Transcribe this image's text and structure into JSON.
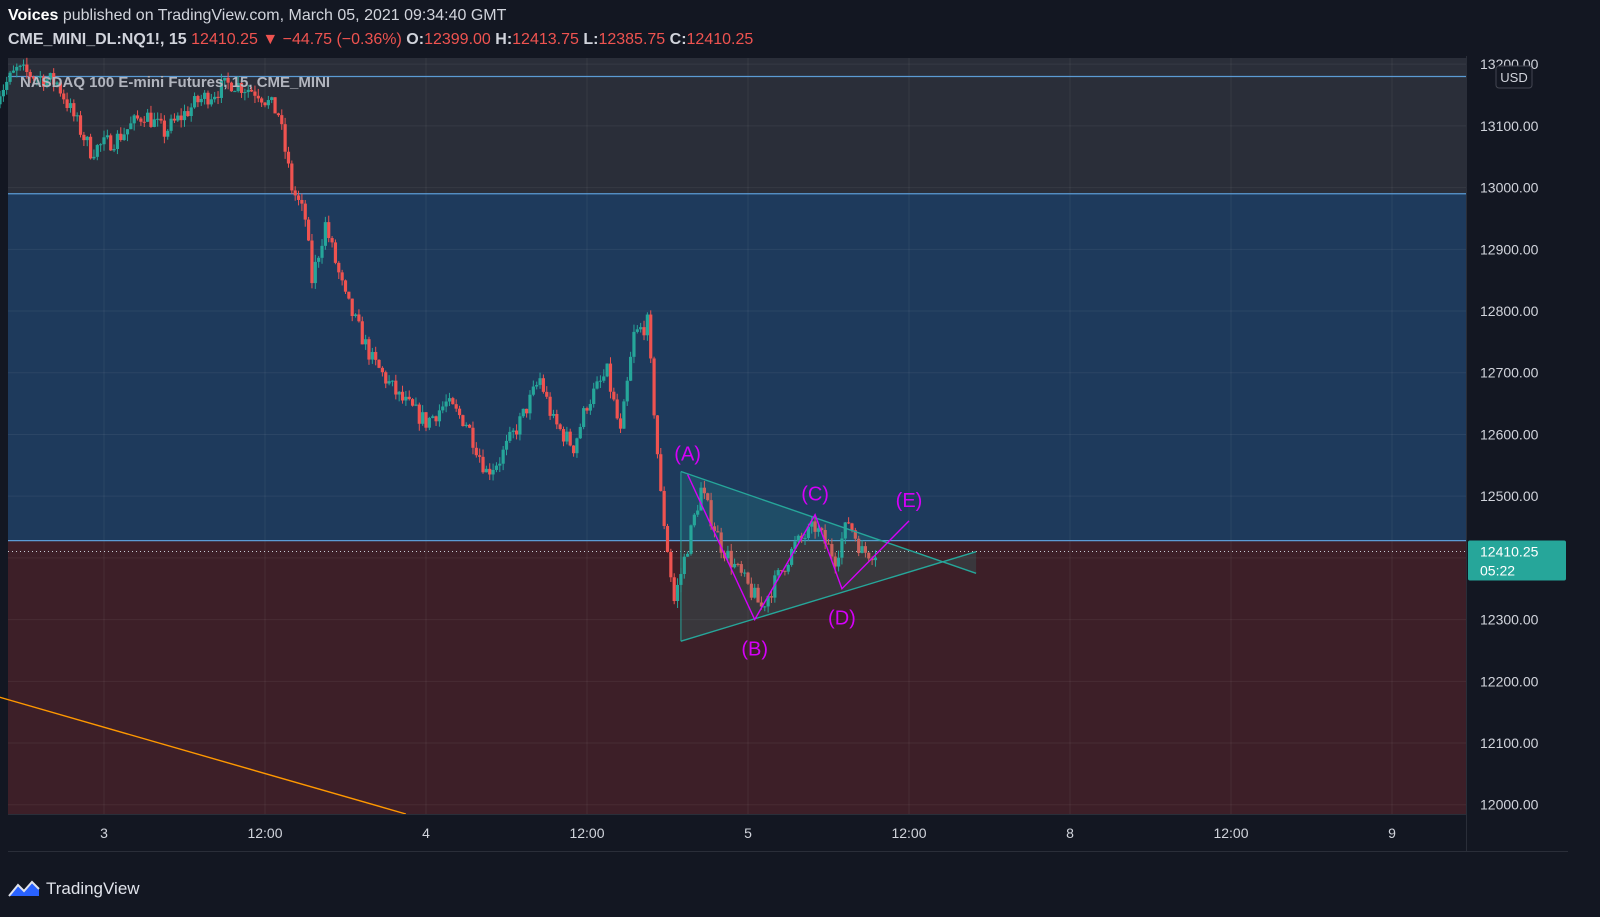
{
  "header": {
    "author": "Voices",
    "published": "published on TradingView.com, March 05, 2021 09:34:40 GMT",
    "symbol": "CME_MINI_DL:NQ1!, 15",
    "last": "12410.25",
    "change_arrow": "▼",
    "change": "−44.75 (−0.36%)",
    "o_label": "O:",
    "o_value": "12399.00",
    "h_label": "H:",
    "h_value": "12413.75",
    "l_label": "L:",
    "l_value": "12385.75",
    "c_label": "C:",
    "c_value": "12410.25"
  },
  "footer": {
    "brand": "TradingView",
    "logo_icon": "tradingview-logo-icon"
  },
  "colors": {
    "background": "#131722",
    "up": "#26a69a",
    "down": "#ef5350",
    "zone_top": "#2a2e39",
    "zone_mid": "#1e3a5c",
    "zone_low": "#3d1f28",
    "level_line": "#5b9bd5",
    "triangle": "#26a69a",
    "wave": "#d500f9",
    "trendline": "#ff9800",
    "price_tag": "#26a69a"
  },
  "chart_data": {
    "type": "candlestick",
    "title": "NASDAQ 100 E-mini Futures, 15, CME_MINI",
    "currency": "USD",
    "ylim": [
      11985,
      13210
    ],
    "y_ticks": [
      "13200.00",
      "13100.00",
      "13000.00",
      "12900.00",
      "12800.00",
      "12700.00",
      "12600.00",
      "12500.00",
      "12400.00",
      "12300.00",
      "12200.00",
      "12100.00",
      "12000.00"
    ],
    "y_tick_values": [
      13200,
      13100,
      13000,
      12900,
      12800,
      12700,
      12600,
      12500,
      12400,
      12300,
      12200,
      12100,
      12000
    ],
    "x_tick_labels": [
      "3",
      "12:00",
      "4",
      "12:00",
      "5",
      "12:00",
      "8",
      "12:00",
      "9"
    ],
    "x_tick_times": [
      "2021-03-03 00:00",
      "2021-03-03 12:00",
      "2021-03-04 00:00",
      "2021-03-04 12:00",
      "2021-03-05 00:00",
      "2021-03-05 12:00",
      "2021-03-08 00:00",
      "2021-03-08 12:00",
      "2021-03-09 00:00"
    ],
    "zones": [
      {
        "name": "upper zone",
        "from": 12990,
        "to": 13210
      },
      {
        "name": "middle zone",
        "from": 12428,
        "to": 12990
      },
      {
        "name": "lower zone",
        "from": 11985,
        "to": 12428
      }
    ],
    "horizontal_levels": [
      13180,
      12990,
      12428
    ],
    "last_price": {
      "value": 12410.25,
      "label": "12410.25",
      "countdown": "05:22"
    },
    "price_path": [
      [
        "2021-03-02 16:00",
        13150
      ],
      [
        "2021-03-02 17:30",
        13190
      ],
      [
        "2021-03-02 20:30",
        13170
      ],
      [
        "2021-03-02 23:00",
        13060
      ],
      [
        "2021-03-03 01:00",
        13080
      ],
      [
        "2021-03-03 03:00",
        13120
      ],
      [
        "2021-03-03 04:30",
        13090
      ],
      [
        "2021-03-03 07:00",
        13140
      ],
      [
        "2021-03-03 09:30",
        13170
      ],
      [
        "2021-03-03 11:30",
        13155
      ],
      [
        "2021-03-03 13:00",
        13120
      ],
      [
        "2021-03-03 14:00",
        13000
      ],
      [
        "2021-03-03 15:00",
        12950
      ],
      [
        "2021-03-03 15:30",
        12850
      ],
      [
        "2021-03-03 16:30",
        12940
      ],
      [
        "2021-03-03 18:00",
        12820
      ],
      [
        "2021-03-03 20:00",
        12720
      ],
      [
        "2021-03-03 22:00",
        12660
      ],
      [
        "2021-03-04 00:00",
        12620
      ],
      [
        "2021-03-04 01:30",
        12650
      ],
      [
        "2021-03-04 03:00",
        12620
      ],
      [
        "2021-03-04 04:30",
        12540
      ],
      [
        "2021-03-04 05:30",
        12560
      ],
      [
        "2021-03-04 07:00",
        12620
      ],
      [
        "2021-03-04 08:30",
        12690
      ],
      [
        "2021-03-04 09:30",
        12620
      ],
      [
        "2021-03-04 11:00",
        12580
      ],
      [
        "2021-03-04 12:00",
        12650
      ],
      [
        "2021-03-04 13:30",
        12700
      ],
      [
        "2021-03-04 14:30",
        12600
      ],
      [
        "2021-03-04 15:30",
        12760
      ],
      [
        "2021-03-04 16:30",
        12780
      ],
      [
        "2021-03-04 17:30",
        12500
      ],
      [
        "2021-03-04 18:30",
        12330
      ],
      [
        "2021-03-04 20:30",
        12510
      ],
      [
        "2021-03-04 22:00",
        12420
      ],
      [
        "2021-03-05 01:00",
        12320
      ],
      [
        "2021-03-05 03:30",
        12420
      ],
      [
        "2021-03-05 05:00",
        12450
      ],
      [
        "2021-03-05 06:30",
        12400
      ],
      [
        "2021-03-05 07:30",
        12460
      ],
      [
        "2021-03-05 08:30",
        12410
      ],
      [
        "2021-03-05 09:30",
        12410
      ]
    ],
    "pattern": {
      "type": "contracting triangle",
      "upper_line": [
        [
          "2021-03-04 19:00",
          12540
        ],
        [
          "2021-03-05 17:00",
          12375
        ]
      ],
      "lower_line": [
        [
          "2021-03-04 19:00",
          12265
        ],
        [
          "2021-03-05 17:00",
          12410
        ]
      ],
      "waves": [
        {
          "label": "(A)",
          "time": "2021-03-04 19:30",
          "price": 12535
        },
        {
          "label": "(B)",
          "time": "2021-03-05 00:30",
          "price": 12300
        },
        {
          "label": "(C)",
          "time": "2021-03-05 05:00",
          "price": 12470
        },
        {
          "label": "(D)",
          "time": "2021-03-05 07:00",
          "price": 12350
        },
        {
          "label": "(E)",
          "time": "2021-03-05 12:00",
          "price": 12460
        }
      ]
    },
    "trendline": [
      [
        "2021-03-02 14:30",
        12185
      ],
      [
        "2021-03-03 22:30",
        11985
      ]
    ]
  }
}
